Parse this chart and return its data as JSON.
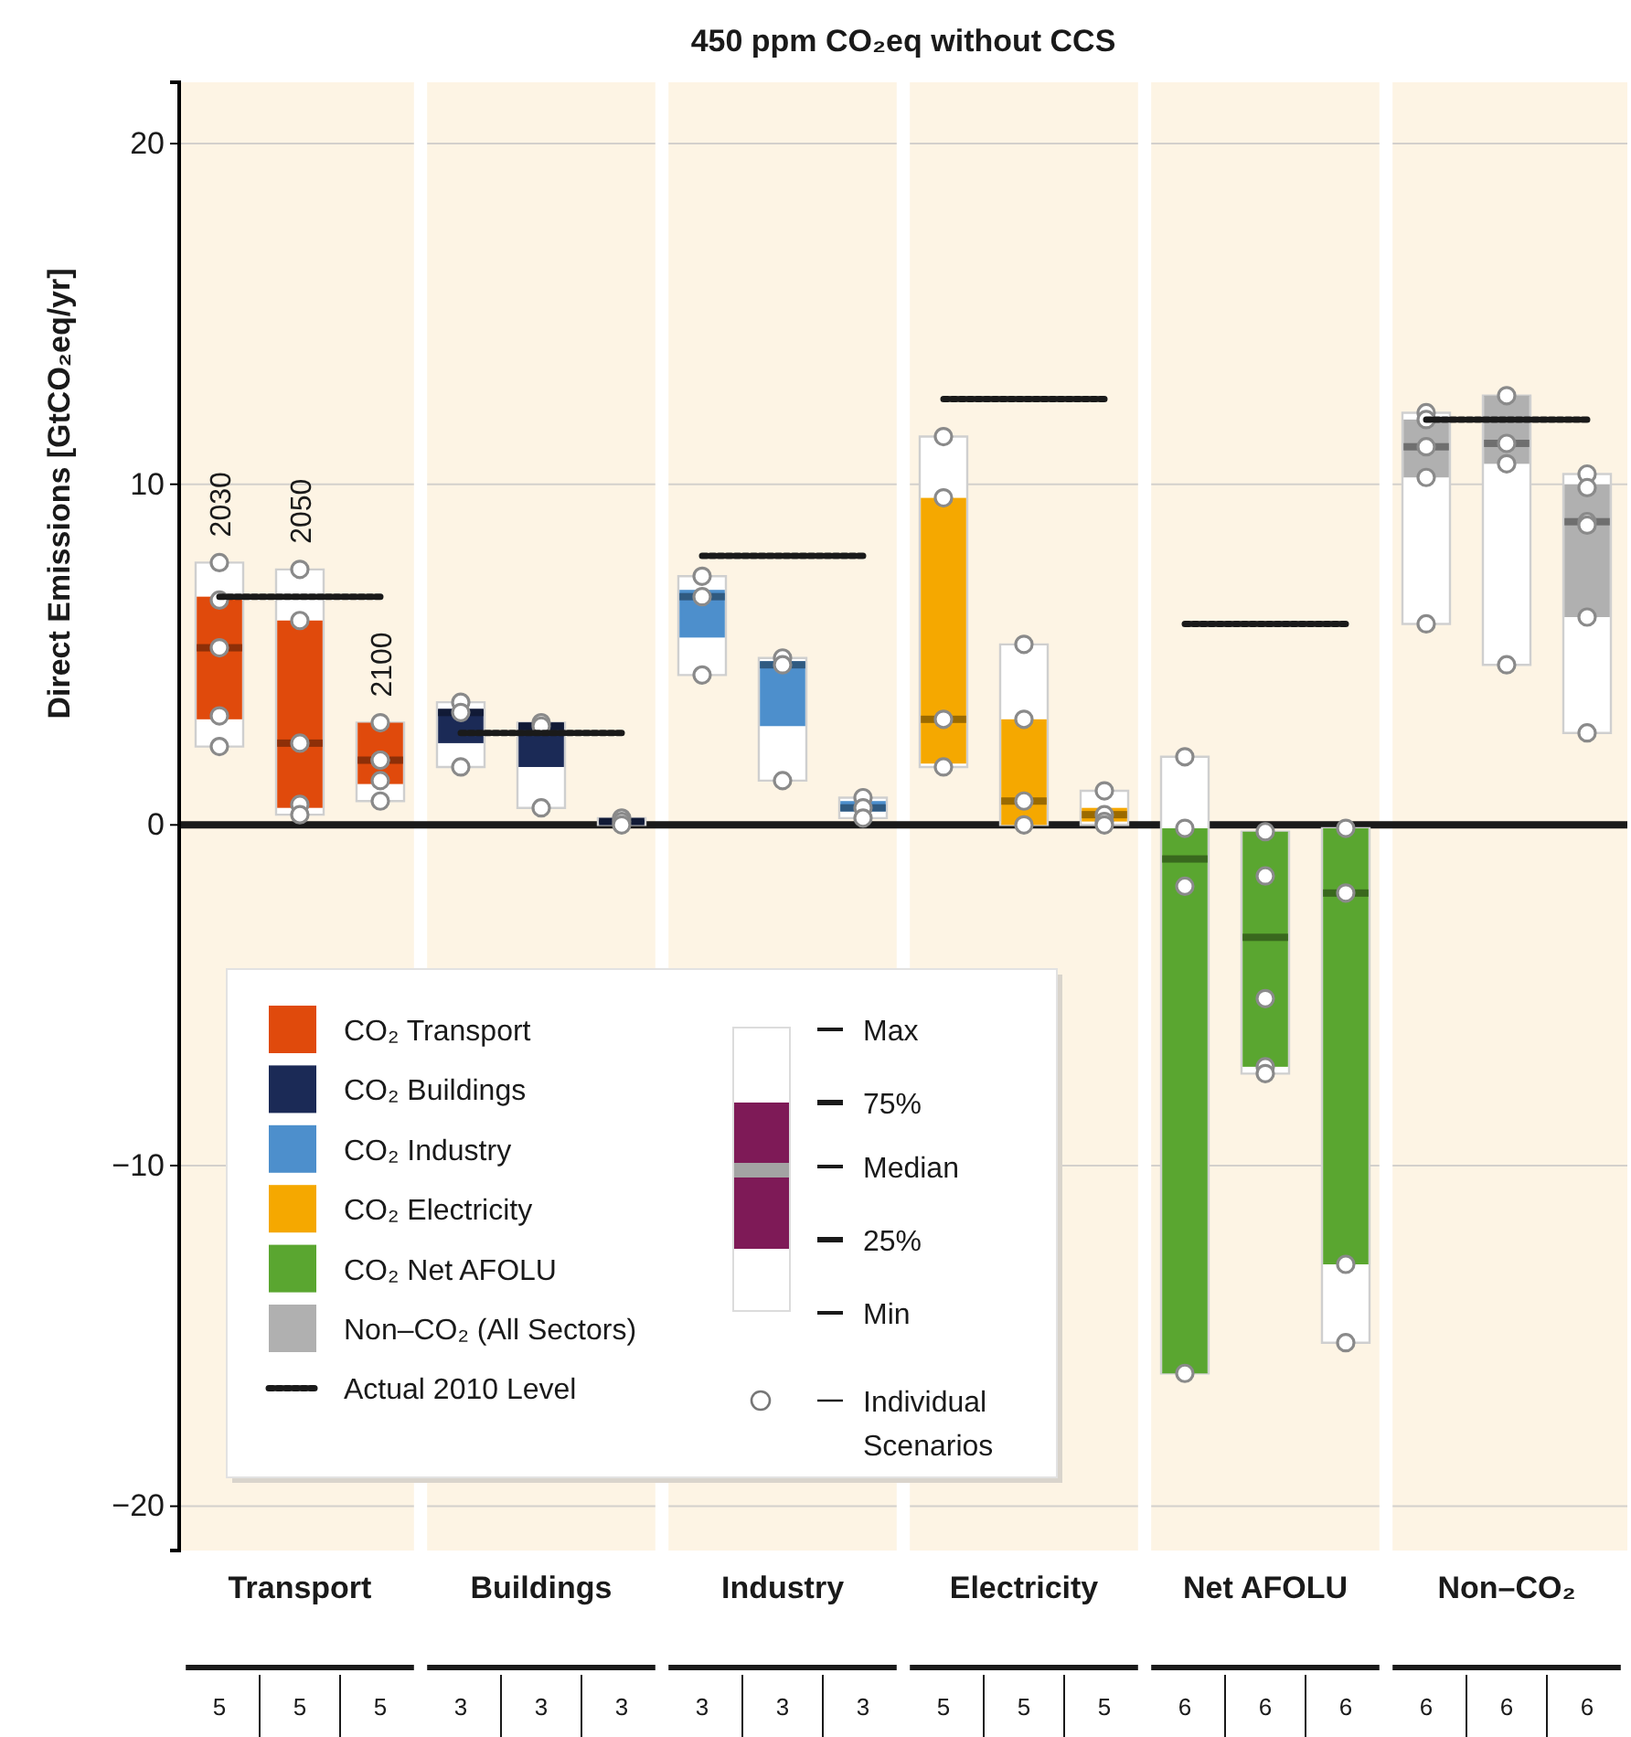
{
  "chart_data": {
    "type": "box",
    "title": "450 ppm CO₂eq without CCS",
    "ylabel": "Direct Emissions [GtCO₂eq/yr]",
    "categories": [
      "2030",
      "2050",
      "2100",
      null,
      null,
      null,
      null,
      null,
      null,
      null,
      null,
      null,
      null,
      null,
      null,
      null,
      null,
      null
    ],
    "ylim": [
      -21.3,
      21.8
    ],
    "yticks": [
      -20,
      -10,
      0,
      10,
      20
    ],
    "grid": "y",
    "legend": "bottom left",
    "series": [
      {
        "name": "CO₂ Transport",
        "color": "#e04a0c",
        "boxes": [
          {
            "low": 2.3,
            "q1": 3.1,
            "median": 5.2,
            "q3": 6.7,
            "high": 7.7,
            "outliers": [
              7.7,
              6.6,
              5.2,
              3.2,
              2.3
            ]
          },
          {
            "low": 0.3,
            "q1": 0.5,
            "median": 2.4,
            "q3": 6.0,
            "high": 7.5,
            "outliers": [
              7.5,
              6.0,
              2.4,
              0.6,
              0.3
            ]
          },
          {
            "low": 0.7,
            "q1": 1.2,
            "median": 1.9,
            "q3": 3.0,
            "high": 3.0,
            "outliers": [
              3.0,
              1.9,
              1.9,
              1.3,
              0.7
            ]
          },
          null,
          null,
          null,
          null,
          null,
          null,
          null,
          null,
          null,
          null,
          null,
          null,
          null,
          null,
          null
        ]
      },
      {
        "name": "CO₂ Buildings",
        "color": "#1b2a56",
        "boxes": [
          null,
          null,
          null,
          {
            "low": 1.7,
            "q1": 2.4,
            "median": 3.3,
            "q3": 3.4,
            "high": 3.6,
            "outliers": [
              3.6,
              3.3,
              1.7
            ]
          },
          {
            "low": 0.5,
            "q1": 1.7,
            "median": 2.9,
            "q3": 3.0,
            "high": 3.0,
            "outliers": [
              3.0,
              2.9,
              0.5
            ]
          },
          {
            "low": 0.0,
            "q1": 0.05,
            "median": 0.1,
            "q3": 0.15,
            "high": 0.2,
            "outliers": [
              0.2,
              0.1,
              0.0
            ]
          },
          null,
          null,
          null,
          null,
          null,
          null,
          null,
          null,
          null,
          null,
          null,
          null
        ]
      },
      {
        "name": "CO₂ Industry",
        "color": "#4d8fcc",
        "boxes": [
          null,
          null,
          null,
          null,
          null,
          null,
          {
            "low": 4.4,
            "q1": 5.5,
            "median": 6.7,
            "q3": 6.9,
            "high": 7.3,
            "outliers": [
              7.3,
              6.7,
              4.4
            ]
          },
          {
            "low": 1.3,
            "q1": 2.9,
            "median": 4.7,
            "q3": 4.8,
            "high": 4.9,
            "outliers": [
              4.9,
              4.7,
              1.3
            ]
          },
          {
            "low": 0.2,
            "q1": 0.4,
            "median": 0.5,
            "q3": 0.7,
            "high": 0.8,
            "outliers": [
              0.8,
              0.5,
              0.2
            ]
          },
          null,
          null,
          null,
          null,
          null,
          null,
          null,
          null,
          null
        ]
      },
      {
        "name": "CO₂ Electricity",
        "color": "#f5a800",
        "boxes": [
          null,
          null,
          null,
          null,
          null,
          null,
          null,
          null,
          null,
          {
            "low": 1.7,
            "q1": 1.8,
            "median": 3.1,
            "q3": 9.6,
            "high": 11.4,
            "outliers": [
              11.4,
              9.6,
              3.1,
              1.7
            ]
          },
          {
            "low": 0.0,
            "q1": 0.0,
            "median": 0.7,
            "q3": 3.1,
            "high": 5.3,
            "outliers": [
              5.3,
              3.1,
              0.7,
              0.0
            ]
          },
          {
            "low": 0.0,
            "q1": 0.1,
            "median": 0.3,
            "q3": 0.5,
            "high": 1.0,
            "outliers": [
              1.0,
              0.3,
              0.1,
              0.0
            ]
          },
          null,
          null,
          null,
          null,
          null,
          null
        ]
      },
      {
        "name": "CO₂ Net AFOLU",
        "color": "#5aa630",
        "boxes": [
          null,
          null,
          null,
          null,
          null,
          null,
          null,
          null,
          null,
          null,
          null,
          null,
          {
            "low": -16.1,
            "q1": -16.1,
            "median": -1.0,
            "q3": -0.1,
            "high": 2.0,
            "outliers": [
              2.0,
              -0.1,
              -1.8,
              -16.1
            ]
          },
          {
            "low": -7.3,
            "q1": -7.1,
            "median": -3.3,
            "q3": -0.2,
            "high": -0.2,
            "outliers": [
              -0.2,
              -1.5,
              -5.1,
              -7.1,
              -7.3
            ]
          },
          {
            "low": -15.2,
            "q1": -12.9,
            "median": -2.0,
            "q3": -0.1,
            "high": -0.1,
            "outliers": [
              -0.1,
              -2.0,
              -12.9,
              -15.2
            ]
          },
          null,
          null,
          null
        ]
      },
      {
        "name": "Non–CO₂ (All Sectors)",
        "color": "#b0b0b0",
        "boxes": [
          null,
          null,
          null,
          null,
          null,
          null,
          null,
          null,
          null,
          null,
          null,
          null,
          null,
          null,
          null,
          {
            "low": 5.9,
            "q1": 10.2,
            "median": 11.1,
            "q3": 11.9,
            "high": 12.1,
            "outliers": [
              12.1,
              11.9,
              11.1,
              10.2,
              5.9
            ]
          },
          {
            "low": 4.7,
            "q1": 10.6,
            "median": 11.2,
            "q3": 12.6,
            "high": 12.6,
            "outliers": [
              12.6,
              11.2,
              10.6,
              4.7
            ]
          },
          {
            "low": 2.7,
            "q1": 6.1,
            "median": 8.9,
            "q3": 10.0,
            "high": 10.3,
            "outliers": [
              10.3,
              9.9,
              8.9,
              8.8,
              6.1,
              2.7
            ]
          }
        ]
      },
      {
        "type": "line",
        "name": "Actual 2010 Level",
        "color": "#1a1a1a",
        "line_style": "dotted",
        "values": [
          6.7,
          6.7,
          6.7,
          null,
          null,
          null,
          null,
          null,
          null,
          null,
          null,
          null,
          null,
          null,
          null,
          null,
          null,
          null
        ]
      },
      {
        "type": "line",
        "color": "#1a1a1a",
        "line_style": "dotted",
        "values": [
          null,
          null,
          null,
          2.7,
          2.7,
          2.7,
          null,
          null,
          null,
          null,
          null,
          null,
          null,
          null,
          null,
          null,
          null,
          null
        ]
      },
      {
        "type": "line",
        "color": "#1a1a1a",
        "line_style": "dotted",
        "values": [
          null,
          null,
          null,
          null,
          null,
          null,
          7.9,
          7.9,
          7.9,
          null,
          null,
          null,
          null,
          null,
          null,
          null,
          null,
          null
        ]
      },
      {
        "type": "line",
        "color": "#1a1a1a",
        "line_style": "dotted",
        "values": [
          null,
          null,
          null,
          null,
          null,
          null,
          null,
          null,
          null,
          12.5,
          12.5,
          12.5,
          null,
          null,
          null,
          null,
          null,
          null
        ]
      },
      {
        "type": "line",
        "color": "#1a1a1a",
        "line_style": "dotted",
        "values": [
          null,
          null,
          null,
          null,
          null,
          null,
          null,
          null,
          null,
          null,
          null,
          null,
          5.9,
          5.9,
          5.9,
          null,
          null,
          null
        ]
      },
      {
        "type": "line",
        "color": "#1a1a1a",
        "line_style": "dotted",
        "values": [
          null,
          null,
          null,
          null,
          null,
          null,
          null,
          null,
          null,
          null,
          null,
          null,
          null,
          null,
          null,
          11.9,
          11.9,
          11.9
        ]
      }
    ],
    "ref_lines": [
      {
        "axis": "y",
        "value": 0,
        "color": "#1a1a1a",
        "line_style": "solid"
      }
    ],
    "annotations": [
      "Max",
      "75%",
      "Median",
      "25%",
      "Min",
      "Individual Scenarios",
      "Transport",
      "Buildings",
      "Industry",
      "Electricity",
      "Net AFOLU",
      "Non–CO₂",
      "5",
      "5",
      "5",
      "3",
      "3",
      "3",
      "3",
      "3",
      "3",
      "5",
      "5",
      "5",
      "6",
      "6",
      "6",
      "6",
      "6",
      "6"
    ]
  }
}
